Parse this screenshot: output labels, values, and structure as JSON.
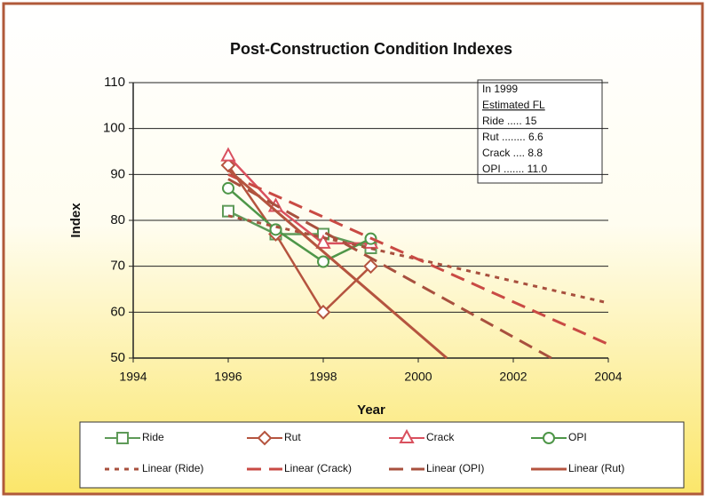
{
  "chart_data": {
    "type": "line",
    "title": "Post-Construction Condition Indexes",
    "xlabel": "Year",
    "ylabel": "Index",
    "xlim": [
      1994,
      2004
    ],
    "ylim": [
      50,
      110
    ],
    "xticks": [
      1994,
      1996,
      1998,
      2000,
      2002,
      2004
    ],
    "yticks": [
      50,
      60,
      70,
      80,
      90,
      100,
      110
    ],
    "grid": true,
    "series": [
      {
        "name": "Ride",
        "color": "#5e9a58",
        "marker": "square",
        "dash": "solid",
        "x": [
          1996,
          1997,
          1998,
          1999
        ],
        "values": [
          82,
          77,
          77,
          74
        ]
      },
      {
        "name": "Rut",
        "color": "#b5543f",
        "marker": "diamond",
        "dash": "solid",
        "x": [
          1996,
          1997,
          1998,
          1999
        ],
        "values": [
          92,
          77,
          60,
          70
        ]
      },
      {
        "name": "Crack",
        "color": "#d9505e",
        "marker": "triangle",
        "dash": "solid",
        "x": [
          1996,
          1997,
          1998,
          1999
        ],
        "values": [
          94,
          83,
          75,
          75
        ]
      },
      {
        "name": "OPI",
        "color": "#4e9648",
        "marker": "circle",
        "dash": "solid",
        "x": [
          1996,
          1997,
          1998,
          1999
        ],
        "values": [
          87,
          78,
          71,
          76
        ]
      },
      {
        "name": "Linear (Ride)",
        "color": "#a8503e",
        "dash": "dotted",
        "x": [
          1996,
          2004
        ],
        "values": [
          81,
          62
        ]
      },
      {
        "name": "Linear (Crack)",
        "color": "#c94a44",
        "dash": "dash",
        "x": [
          1996,
          2004
        ],
        "values": [
          90,
          53
        ]
      },
      {
        "name": "Linear (OPI)",
        "color": "#a8503e",
        "dash": "dash",
        "x": [
          1996,
          2002.8
        ],
        "values": [
          89,
          50
        ]
      },
      {
        "name": "Linear (Rut)",
        "color": "#b5543f",
        "dash": "solid",
        "x": [
          1996,
          2000.6
        ],
        "values": [
          91,
          50
        ]
      }
    ],
    "annotation": [
      "In 1999",
      "Estimated FL",
      "Ride  ..... 15",
      "Rut ........ 6.6",
      "Crack .... 8.8",
      "OPI ....... 11.0"
    ]
  }
}
